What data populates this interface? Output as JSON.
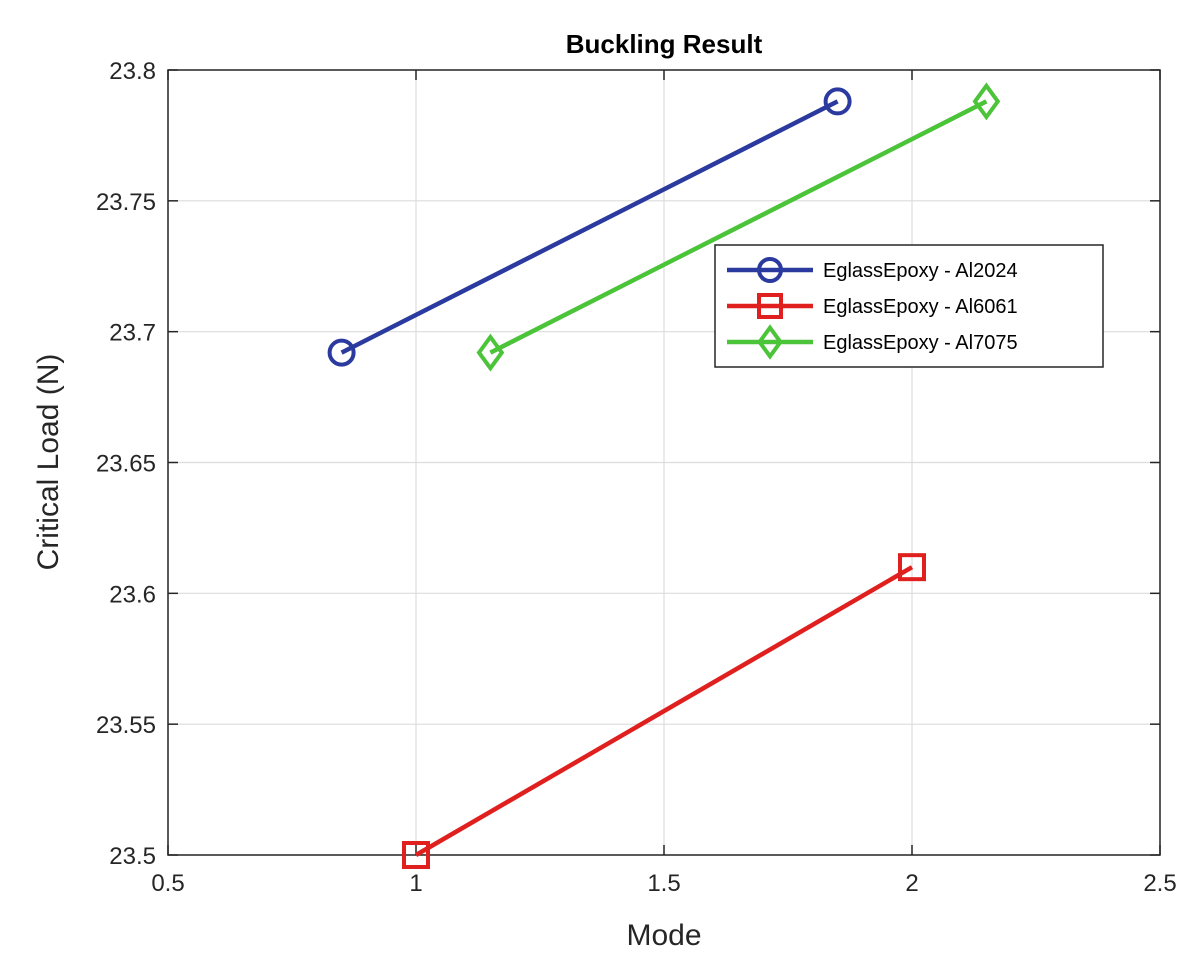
{
  "chart_data": {
    "type": "line",
    "title": "Buckling Result",
    "xlabel": "Mode",
    "ylabel": "Critical Load (N)",
    "xlim": [
      0.5,
      2.5
    ],
    "ylim": [
      23.5,
      23.8
    ],
    "xticks": [
      0.5,
      1,
      1.5,
      2,
      2.5
    ],
    "xtick_labels": [
      "0.5",
      "1",
      "1.5",
      "2",
      "2.5"
    ],
    "yticks": [
      23.5,
      23.55,
      23.6,
      23.65,
      23.7,
      23.75,
      23.8
    ],
    "ytick_labels": [
      "23.5",
      "23.55",
      "23.6",
      "23.65",
      "23.7",
      "23.75",
      "23.8"
    ],
    "grid": true,
    "legend_position": "top-right",
    "series": [
      {
        "name": "EglassEpoxy  - Al2024",
        "marker": "circle",
        "color": "#2b3a9e",
        "x": [
          0.85,
          1.85
        ],
        "y": [
          23.692,
          23.788
        ]
      },
      {
        "name": "EglassEpoxy - Al6061",
        "marker": "square",
        "color": "#e0201e",
        "x": [
          1.0,
          2.0
        ],
        "y": [
          23.5,
          23.61
        ]
      },
      {
        "name": "EglassEpoxy - Al7075",
        "marker": "diamond",
        "color": "#4cc43a",
        "x": [
          1.15,
          2.15
        ],
        "y": [
          23.692,
          23.788
        ]
      }
    ]
  }
}
